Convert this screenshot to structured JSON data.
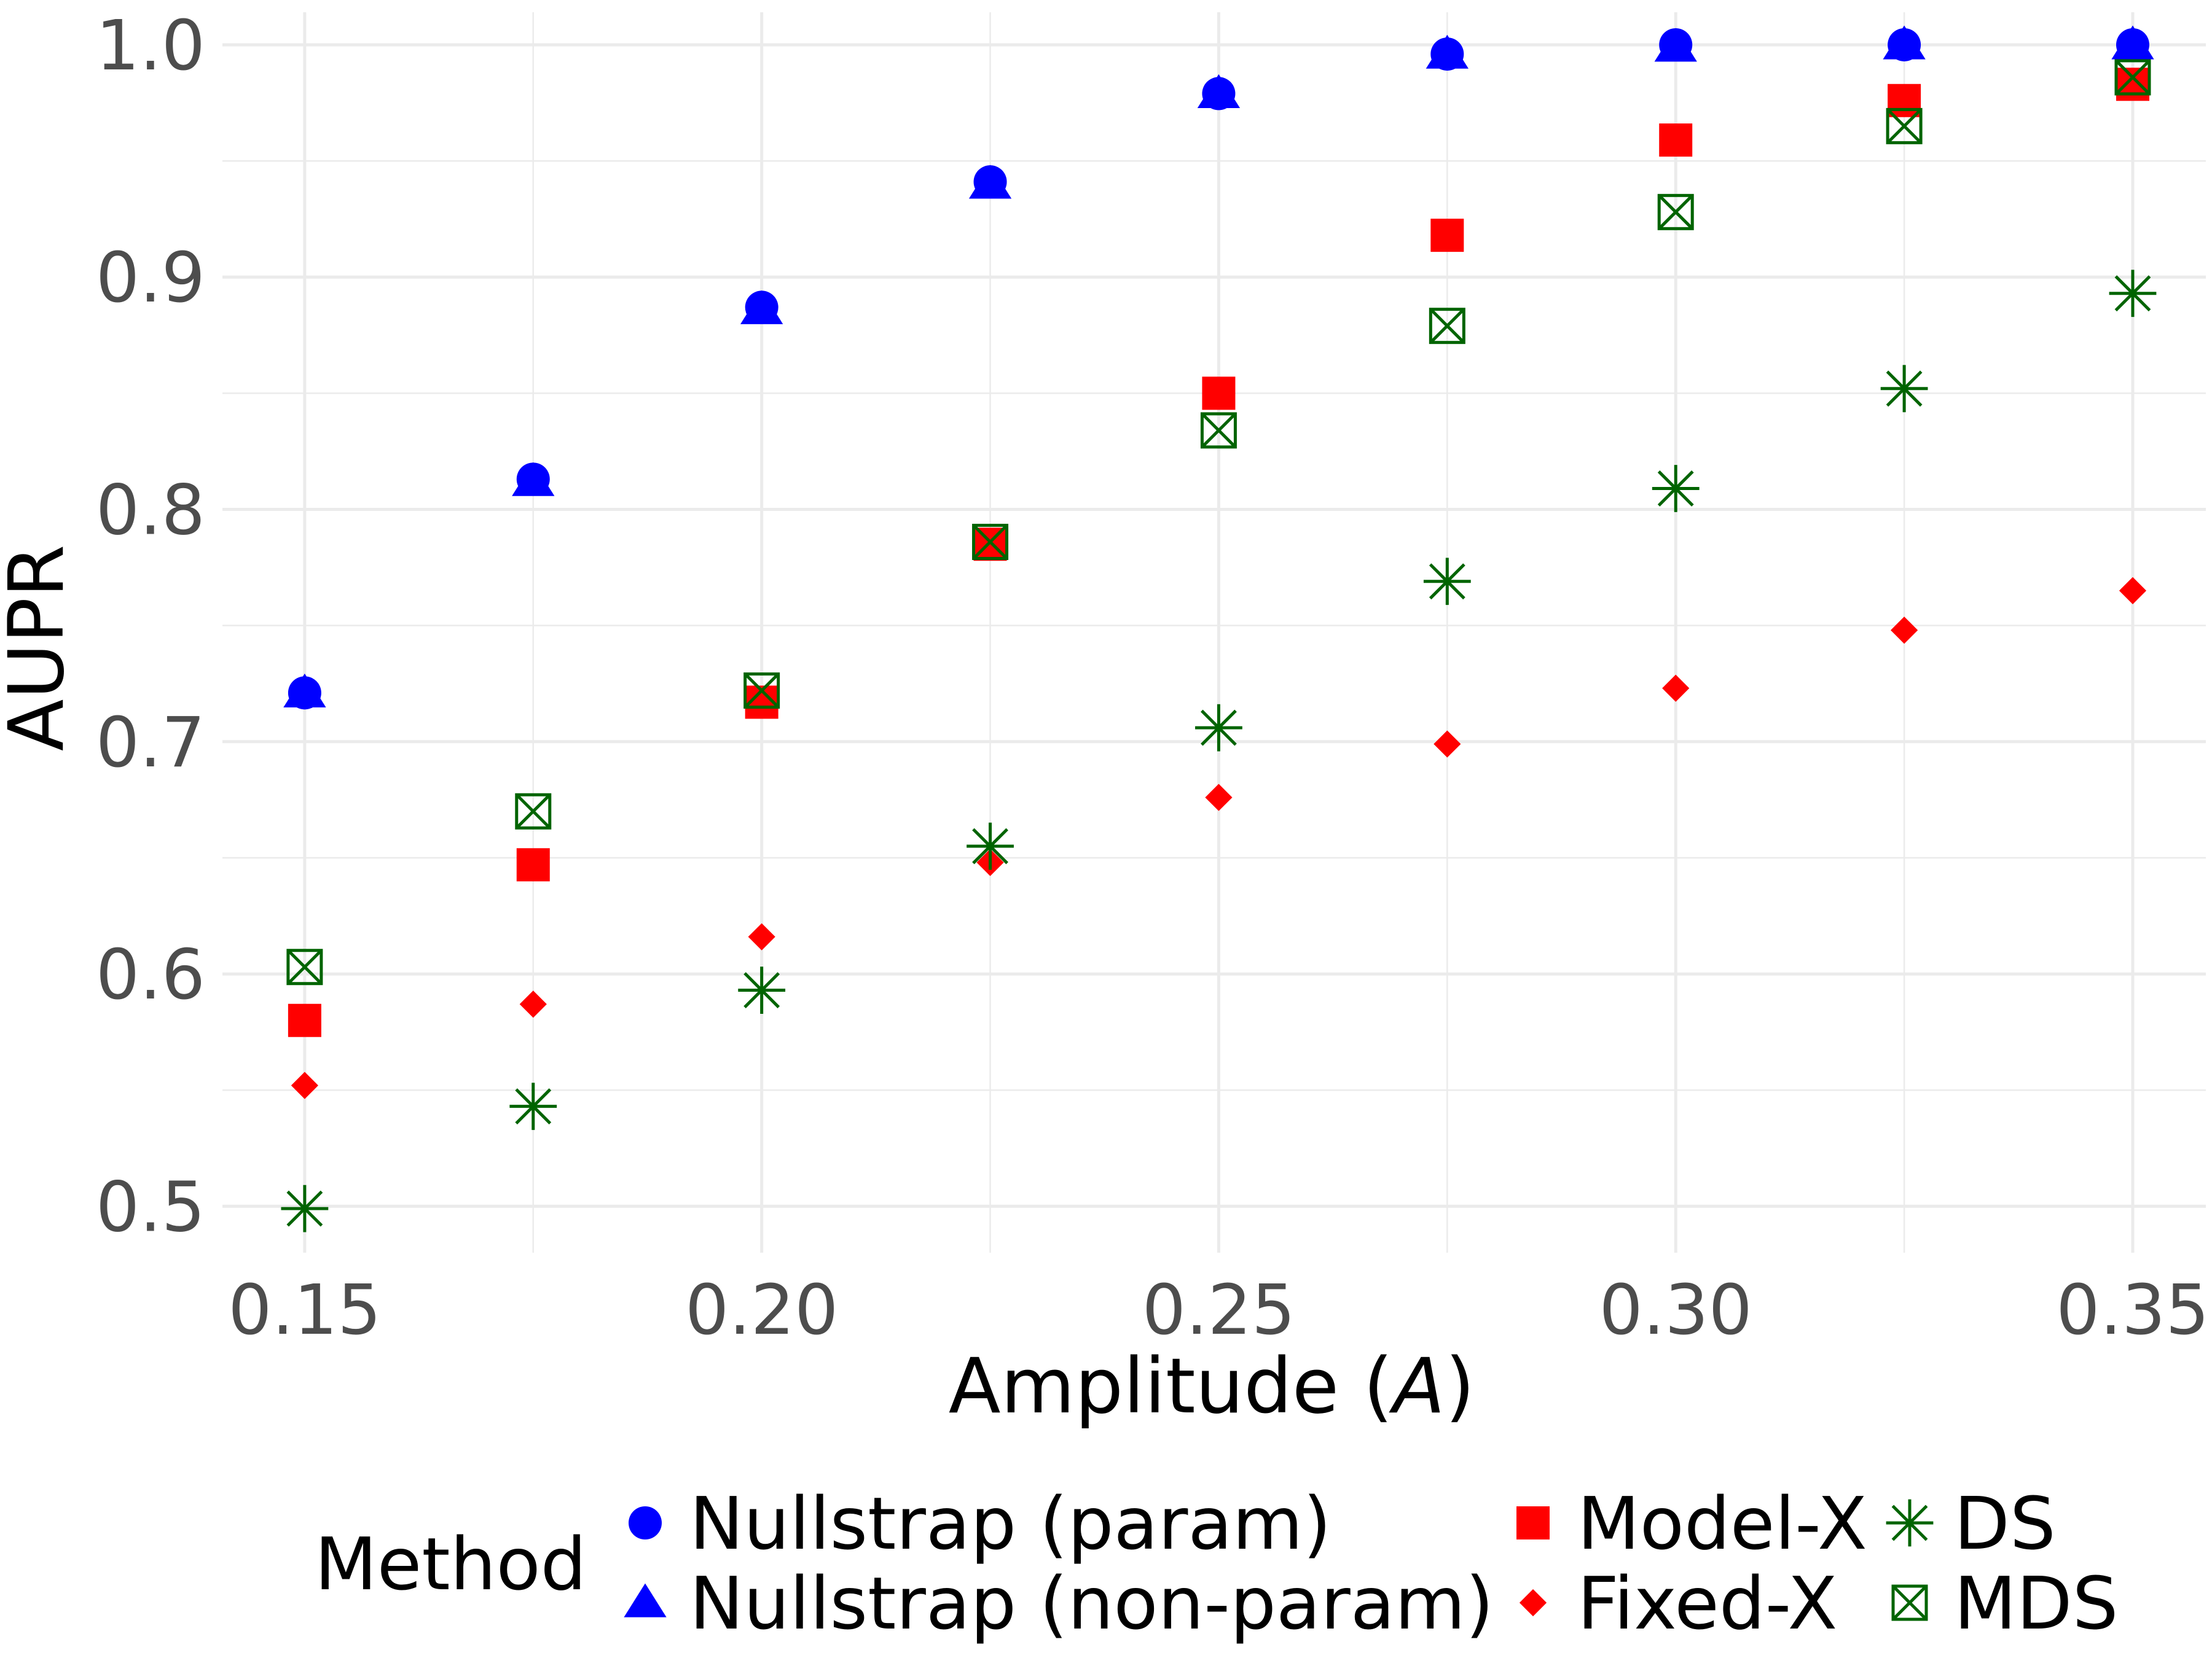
{
  "chart_data": {
    "type": "scatter",
    "xlabel": "Amplitude",
    "xlabel_symbol": "A",
    "ylabel": "AUPR",
    "xlim": [
      0.141,
      0.358
    ],
    "ylim": [
      0.48,
      1.014
    ],
    "x_ticks": [
      0.15,
      0.2,
      0.25,
      0.3,
      0.35
    ],
    "x_tick_labels": [
      "0.15",
      "0.20",
      "0.25",
      "0.30",
      "0.35"
    ],
    "y_ticks": [
      0.5,
      0.6,
      0.7,
      0.8,
      0.9,
      1.0
    ],
    "y_tick_labels": [
      "0.5",
      "0.6",
      "0.7",
      "0.8",
      "0.9",
      "1.0"
    ],
    "grid": true,
    "legend_title": "Method",
    "legend_position": "bottom",
    "x": [
      0.15,
      0.175,
      0.2,
      0.225,
      0.25,
      0.275,
      0.3,
      0.325,
      0.35
    ],
    "series": [
      {
        "name": "Nullstrap (param)",
        "shape": "circle",
        "color": "#0000ff",
        "values": [
          0.721,
          0.813,
          0.887,
          0.941,
          0.979,
          0.996,
          1.0,
          1.0,
          1.0
        ]
      },
      {
        "name": "Nullstrap (non-param)",
        "shape": "triangle",
        "color": "#0000ff",
        "values": [
          0.721,
          0.812,
          0.886,
          0.94,
          0.979,
          0.996,
          0.999,
          1.0,
          1.0
        ]
      },
      {
        "name": "Model-X",
        "shape": "square",
        "color": "#ff0000",
        "values": [
          0.58,
          0.647,
          0.717,
          0.785,
          0.85,
          0.918,
          0.959,
          0.976,
          0.983
        ]
      },
      {
        "name": "Fixed-X",
        "shape": "diamond",
        "color": "#ff0000",
        "values": [
          0.552,
          0.587,
          0.616,
          0.648,
          0.676,
          0.699,
          0.723,
          0.748,
          0.765
        ]
      },
      {
        "name": "DS",
        "shape": "asterisk",
        "color": "#006400",
        "values": [
          0.499,
          0.543,
          0.593,
          0.655,
          0.706,
          0.769,
          0.809,
          0.852,
          0.893
        ]
      },
      {
        "name": "MDS",
        "shape": "boxed-x",
        "color": "#006400",
        "values": [
          0.603,
          0.67,
          0.722,
          0.786,
          0.834,
          0.879,
          0.928,
          0.965,
          0.986
        ]
      }
    ]
  }
}
